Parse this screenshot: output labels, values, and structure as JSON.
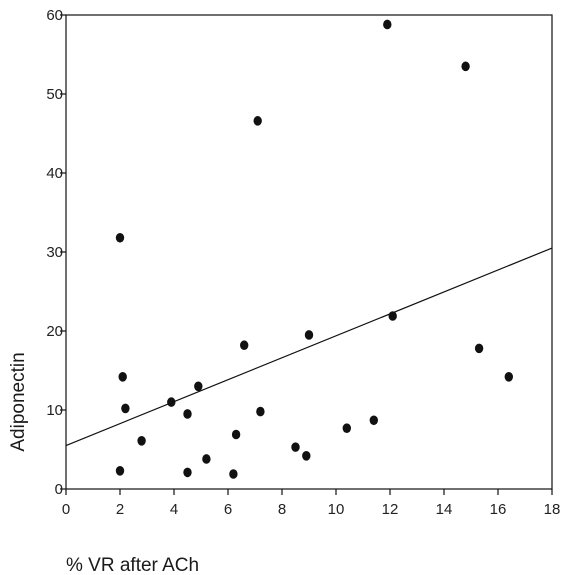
{
  "chart_data": {
    "type": "scatter",
    "xlabel": "% VR after ACh",
    "ylabel": "Adiponectin",
    "xlim": [
      0,
      18
    ],
    "ylim": [
      0,
      60
    ],
    "xticks": [
      "0",
      "2",
      "4",
      "6",
      "8",
      "10",
      "12",
      "14",
      "16",
      "18"
    ],
    "yticks": [
      "0",
      "10",
      "20",
      "30",
      "40",
      "50",
      "60"
    ],
    "grid": false,
    "points": [
      {
        "x": 2.0,
        "y": 31.8
      },
      {
        "x": 2.0,
        "y": 2.3
      },
      {
        "x": 2.1,
        "y": 14.2
      },
      {
        "x": 2.2,
        "y": 10.2
      },
      {
        "x": 2.8,
        "y": 6.1
      },
      {
        "x": 3.9,
        "y": 11.0
      },
      {
        "x": 4.5,
        "y": 9.5
      },
      {
        "x": 4.5,
        "y": 2.1
      },
      {
        "x": 4.9,
        "y": 13.0
      },
      {
        "x": 5.2,
        "y": 3.8
      },
      {
        "x": 6.2,
        "y": 1.9
      },
      {
        "x": 6.3,
        "y": 6.9
      },
      {
        "x": 6.6,
        "y": 18.2
      },
      {
        "x": 7.1,
        "y": 46.6
      },
      {
        "x": 7.2,
        "y": 9.8
      },
      {
        "x": 8.5,
        "y": 5.3
      },
      {
        "x": 8.9,
        "y": 4.2
      },
      {
        "x": 9.0,
        "y": 19.5
      },
      {
        "x": 10.4,
        "y": 7.7
      },
      {
        "x": 11.4,
        "y": 8.7
      },
      {
        "x": 11.9,
        "y": 58.8
      },
      {
        "x": 12.1,
        "y": 21.9
      },
      {
        "x": 14.8,
        "y": 53.5
      },
      {
        "x": 15.3,
        "y": 17.8
      },
      {
        "x": 16.4,
        "y": 14.2
      }
    ],
    "trendline": {
      "x": [
        0,
        18
      ],
      "y": [
        5.5,
        30.5
      ]
    },
    "colors": {
      "points": "#111111",
      "line": "#111111",
      "axes": "#111111"
    }
  }
}
